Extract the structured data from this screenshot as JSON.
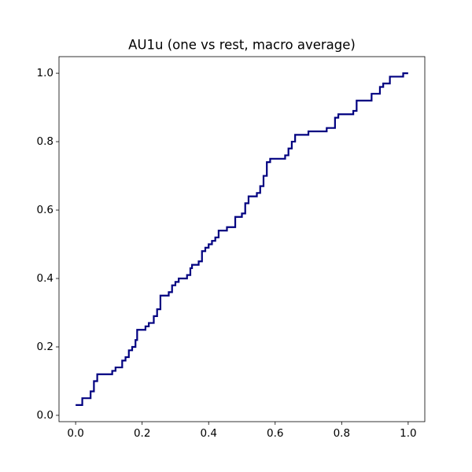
{
  "chart_data": {
    "type": "line",
    "title": "AU1u (one vs rest, macro average)",
    "xlim": [
      -0.05,
      1.05
    ],
    "ylim": [
      -0.0185,
      1.0485
    ],
    "xticks": [
      {
        "value": 0,
        "label": "0.0"
      },
      0.2,
      0.4,
      0.6,
      0.8,
      {
        "value": 1,
        "label": "1.0"
      }
    ],
    "yticks": [
      {
        "value": 0,
        "label": "0.0"
      },
      0.2,
      0.4,
      0.6,
      0.8,
      {
        "value": 1,
        "label": "1.0"
      }
    ],
    "grid": false,
    "x": [
      0,
      0.02,
      0.02,
      0.045,
      0.045,
      0.055,
      0.055,
      0.065,
      0.065,
      0.11,
      0.11,
      0.12,
      0.12,
      0.14,
      0.14,
      0.15,
      0.15,
      0.16,
      0.16,
      0.17,
      0.17,
      0.18,
      0.18,
      0.185,
      0.185,
      0.21,
      0.21,
      0.22,
      0.22,
      0.235,
      0.235,
      0.245,
      0.245,
      0.255,
      0.255,
      0.28,
      0.28,
      0.29,
      0.29,
      0.3,
      0.3,
      0.31,
      0.31,
      0.335,
      0.335,
      0.345,
      0.345,
      0.35,
      0.35,
      0.37,
      0.37,
      0.38,
      0.38,
      0.39,
      0.39,
      0.4,
      0.4,
      0.41,
      0.41,
      0.42,
      0.42,
      0.43,
      0.43,
      0.455,
      0.455,
      0.48,
      0.48,
      0.5,
      0.5,
      0.51,
      0.51,
      0.52,
      0.52,
      0.545,
      0.545,
      0.555,
      0.555,
      0.565,
      0.565,
      0.575,
      0.575,
      0.585,
      0.585,
      0.63,
      0.63,
      0.64,
      0.64,
      0.65,
      0.65,
      0.66,
      0.66,
      0.7,
      0.7,
      0.755,
      0.755,
      0.78,
      0.78,
      0.79,
      0.79,
      0.835,
      0.835,
      0.845,
      0.845,
      0.89,
      0.89,
      0.915,
      0.915,
      0.925,
      0.925,
      0.945,
      0.945,
      0.985,
      0.985,
      1.0
    ],
    "series": [
      {
        "color": "#000080",
        "values": [
          0.03,
          0.03,
          0.05,
          0.05,
          0.07,
          0.07,
          0.1,
          0.1,
          0.12,
          0.12,
          0.13,
          0.13,
          0.14,
          0.14,
          0.16,
          0.16,
          0.17,
          0.17,
          0.19,
          0.19,
          0.2,
          0.2,
          0.22,
          0.22,
          0.25,
          0.25,
          0.26,
          0.26,
          0.27,
          0.27,
          0.29,
          0.29,
          0.31,
          0.31,
          0.35,
          0.35,
          0.36,
          0.36,
          0.38,
          0.38,
          0.39,
          0.39,
          0.4,
          0.4,
          0.41,
          0.41,
          0.43,
          0.43,
          0.44,
          0.44,
          0.45,
          0.45,
          0.48,
          0.48,
          0.49,
          0.49,
          0.5,
          0.5,
          0.51,
          0.51,
          0.52,
          0.52,
          0.54,
          0.54,
          0.55,
          0.55,
          0.58,
          0.58,
          0.59,
          0.59,
          0.62,
          0.62,
          0.64,
          0.64,
          0.65,
          0.65,
          0.67,
          0.67,
          0.7,
          0.7,
          0.74,
          0.74,
          0.75,
          0.75,
          0.76,
          0.76,
          0.78,
          0.78,
          0.8,
          0.8,
          0.82,
          0.82,
          0.83,
          0.83,
          0.84,
          0.84,
          0.87,
          0.87,
          0.88,
          0.88,
          0.89,
          0.89,
          0.92,
          0.92,
          0.94,
          0.94,
          0.96,
          0.96,
          0.97,
          0.97,
          0.99,
          0.99,
          1.0,
          1.0
        ]
      }
    ]
  }
}
